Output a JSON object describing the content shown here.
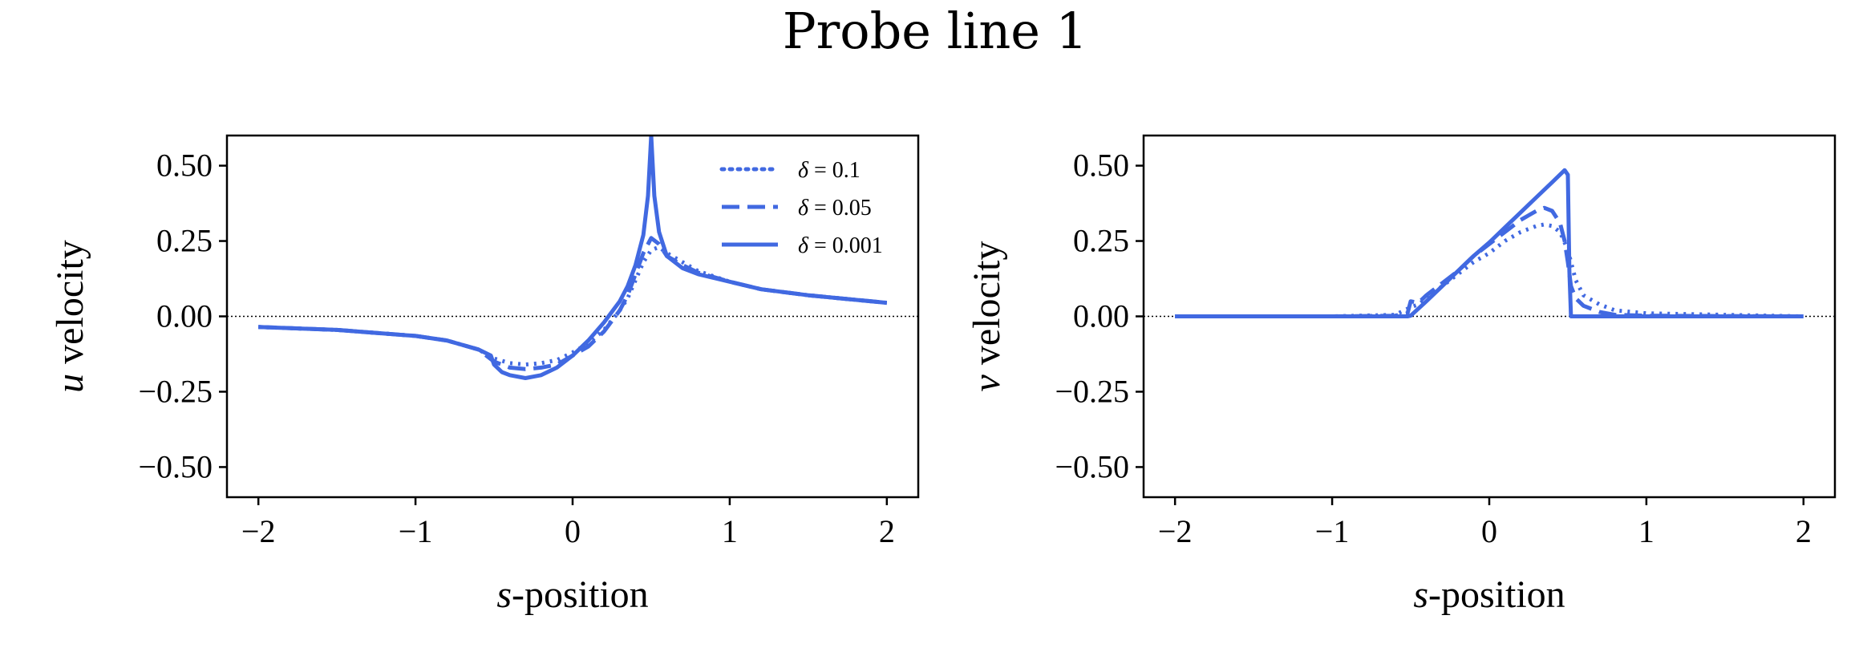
{
  "figure_title": "Probe line 1",
  "chart_data": [
    {
      "type": "line",
      "xlabel_italic": "s",
      "xlabel_rest": "-position",
      "ylabel_italic": "u",
      "ylabel_rest": " velocity",
      "xlim": [
        -2.2,
        2.2
      ],
      "ylim": [
        -0.6,
        0.6
      ],
      "xticks": [
        -2,
        -1,
        0,
        1,
        2
      ],
      "yticks": [
        0.5,
        0.25,
        0.0,
        -0.25,
        -0.5
      ],
      "xtick_labels": [
        "−2",
        "−1",
        "0",
        "1",
        "2"
      ],
      "ytick_labels": [
        "0.50",
        "0.25",
        "0.00",
        "−0.25",
        "−0.50"
      ],
      "zero_reference_line": true,
      "color": "#4169e1",
      "legend": {
        "position": "top-right",
        "entries": [
          {
            "symbol": "δ",
            "text": " = 0.1",
            "style": "dotted"
          },
          {
            "symbol": "δ",
            "text": " = 0.05",
            "style": "dashed"
          },
          {
            "symbol": "δ",
            "text": " = 0.001",
            "style": "solid"
          }
        ]
      },
      "series": [
        {
          "style": "dotted",
          "x": [
            -2.0,
            -1.5,
            -1.0,
            -0.8,
            -0.6,
            -0.5,
            -0.4,
            -0.3,
            -0.2,
            -0.1,
            0.0,
            0.1,
            0.2,
            0.3,
            0.35,
            0.4,
            0.45,
            0.5,
            0.55,
            0.6,
            0.7,
            0.8,
            1.0,
            1.2,
            1.5,
            2.0
          ],
          "y": [
            -0.035,
            -0.045,
            -0.065,
            -0.08,
            -0.11,
            -0.14,
            -0.155,
            -0.16,
            -0.155,
            -0.145,
            -0.12,
            -0.09,
            -0.045,
            0.02,
            0.06,
            0.12,
            0.18,
            0.22,
            0.23,
            0.21,
            0.18,
            0.15,
            0.115,
            0.09,
            0.07,
            0.045
          ]
        },
        {
          "style": "dashed",
          "x": [
            -2.0,
            -1.5,
            -1.0,
            -0.8,
            -0.6,
            -0.5,
            -0.4,
            -0.3,
            -0.2,
            -0.1,
            0.0,
            0.1,
            0.2,
            0.3,
            0.35,
            0.4,
            0.45,
            0.5,
            0.55,
            0.6,
            0.7,
            0.8,
            1.0,
            1.2,
            1.5,
            2.0
          ],
          "y": [
            -0.035,
            -0.045,
            -0.065,
            -0.08,
            -0.11,
            -0.15,
            -0.17,
            -0.175,
            -0.17,
            -0.16,
            -0.13,
            -0.1,
            -0.05,
            0.02,
            0.07,
            0.14,
            0.21,
            0.26,
            0.24,
            0.2,
            0.17,
            0.145,
            0.115,
            0.09,
            0.07,
            0.045
          ]
        },
        {
          "style": "solid",
          "x": [
            -2.0,
            -1.5,
            -1.0,
            -0.8,
            -0.6,
            -0.52,
            -0.5,
            -0.45,
            -0.4,
            -0.3,
            -0.2,
            -0.1,
            0.0,
            0.1,
            0.2,
            0.3,
            0.35,
            0.4,
            0.45,
            0.48,
            0.5,
            0.52,
            0.55,
            0.6,
            0.7,
            0.8,
            1.0,
            1.2,
            1.5,
            2.0
          ],
          "y": [
            -0.035,
            -0.045,
            -0.065,
            -0.08,
            -0.11,
            -0.13,
            -0.16,
            -0.185,
            -0.195,
            -0.205,
            -0.195,
            -0.17,
            -0.13,
            -0.08,
            -0.02,
            0.05,
            0.1,
            0.17,
            0.27,
            0.4,
            0.6,
            0.4,
            0.28,
            0.2,
            0.16,
            0.14,
            0.115,
            0.09,
            0.07,
            0.045
          ]
        }
      ]
    },
    {
      "type": "line",
      "xlabel_italic": "s",
      "xlabel_rest": "-position",
      "ylabel_italic": "v",
      "ylabel_rest": " velocity",
      "xlim": [
        -2.2,
        2.2
      ],
      "ylim": [
        -0.6,
        0.6
      ],
      "xticks": [
        -2,
        -1,
        0,
        1,
        2
      ],
      "yticks": [
        0.5,
        0.25,
        0.0,
        -0.25,
        -0.5
      ],
      "xtick_labels": [
        "−2",
        "−1",
        "0",
        "1",
        "2"
      ],
      "ytick_labels": [
        "0.50",
        "0.25",
        "0.00",
        "−0.25",
        "−0.50"
      ],
      "zero_reference_line": true,
      "color": "#4169e1",
      "series": [
        {
          "style": "dotted",
          "x": [
            -2.0,
            -1.0,
            -0.6,
            -0.5,
            -0.45,
            -0.4,
            -0.3,
            -0.2,
            -0.1,
            0.0,
            0.1,
            0.2,
            0.3,
            0.35,
            0.4,
            0.45,
            0.5,
            0.55,
            0.6,
            0.7,
            0.8,
            1.0,
            1.5,
            2.0
          ],
          "y": [
            0.0,
            0.0,
            0.005,
            0.03,
            0.04,
            0.06,
            0.1,
            0.14,
            0.18,
            0.21,
            0.25,
            0.28,
            0.3,
            0.305,
            0.3,
            0.28,
            0.22,
            0.12,
            0.07,
            0.04,
            0.02,
            0.01,
            0.005,
            0.0
          ]
        },
        {
          "style": "dashed",
          "x": [
            -2.0,
            -1.0,
            -0.6,
            -0.52,
            -0.5,
            -0.45,
            -0.4,
            -0.3,
            -0.2,
            -0.1,
            0.0,
            0.1,
            0.2,
            0.3,
            0.35,
            0.4,
            0.45,
            0.48,
            0.5,
            0.52,
            0.55,
            0.6,
            0.7,
            0.8,
            1.0,
            2.0
          ],
          "y": [
            0.0,
            0.0,
            0.002,
            0.01,
            0.05,
            0.045,
            0.07,
            0.11,
            0.15,
            0.2,
            0.24,
            0.28,
            0.32,
            0.35,
            0.36,
            0.35,
            0.31,
            0.25,
            0.18,
            0.1,
            0.06,
            0.035,
            0.015,
            0.005,
            0.002,
            0.0
          ]
        },
        {
          "style": "solid",
          "x": [
            -2.0,
            -1.0,
            -0.6,
            -0.52,
            -0.5,
            -0.4,
            -0.3,
            -0.2,
            -0.1,
            0.0,
            0.1,
            0.2,
            0.3,
            0.4,
            0.48,
            0.5,
            0.51,
            0.52,
            0.55,
            0.6,
            0.8,
            1.0,
            1.5,
            2.0
          ],
          "y": [
            0.0,
            0.0,
            0.0,
            0.0,
            0.002,
            0.05,
            0.1,
            0.15,
            0.2,
            0.245,
            0.295,
            0.345,
            0.395,
            0.445,
            0.485,
            0.47,
            0.15,
            0.0,
            0.0,
            0.0,
            0.0,
            0.0,
            0.0,
            0.0
          ]
        }
      ]
    }
  ]
}
